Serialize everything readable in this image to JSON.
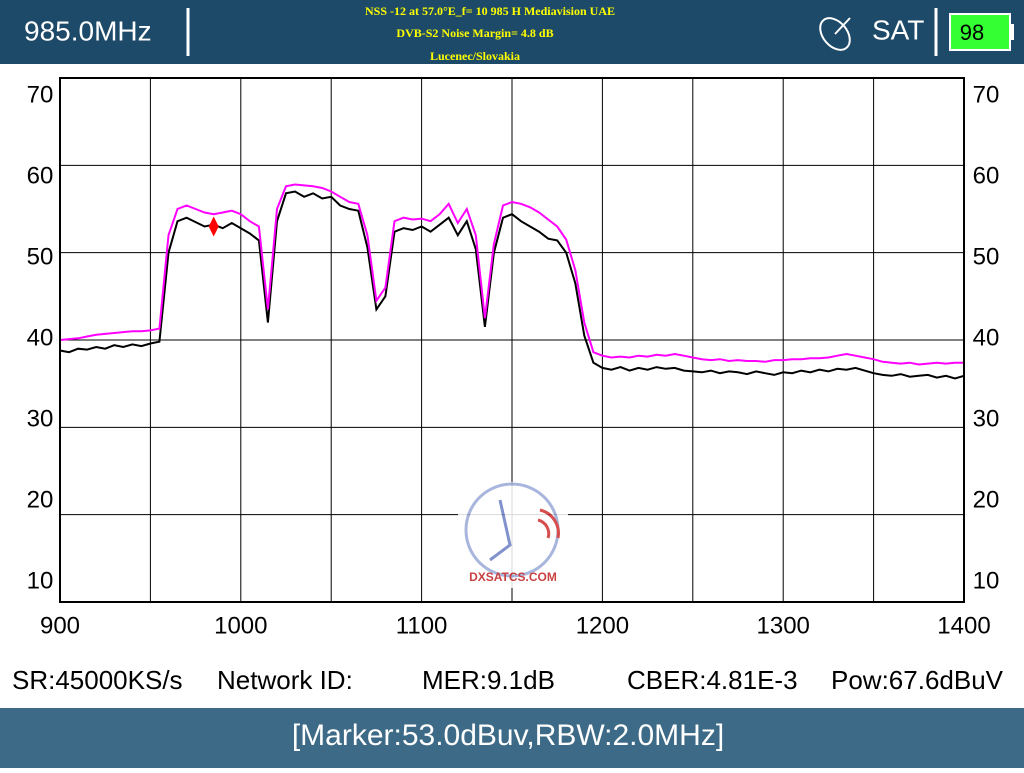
{
  "header": {
    "frequency": "985.0MHz",
    "info": [
      "NSS -12 at 57.0°E_f= 10 985 H Mediavision UAE",
      "DVB-S2 Noise Margin= 4.8 dB",
      "Lucenec/Slovakia"
    ],
    "mode": "SAT",
    "battery": "98"
  },
  "chart_data": {
    "type": "line",
    "x": [
      900,
      905,
      910,
      915,
      920,
      925,
      930,
      935,
      940,
      945,
      950,
      955,
      960,
      965,
      970,
      975,
      980,
      985,
      990,
      995,
      1000,
      1005,
      1010,
      1015,
      1020,
      1025,
      1030,
      1035,
      1040,
      1045,
      1050,
      1055,
      1060,
      1065,
      1070,
      1075,
      1080,
      1085,
      1090,
      1095,
      1100,
      1105,
      1110,
      1115,
      1120,
      1125,
      1130,
      1135,
      1140,
      1145,
      1150,
      1155,
      1160,
      1165,
      1170,
      1175,
      1180,
      1185,
      1190,
      1195,
      1200,
      1205,
      1210,
      1215,
      1220,
      1225,
      1230,
      1235,
      1240,
      1245,
      1250,
      1255,
      1260,
      1265,
      1270,
      1275,
      1280,
      1285,
      1290,
      1295,
      1300,
      1305,
      1310,
      1315,
      1320,
      1325,
      1330,
      1335,
      1340,
      1345,
      1350,
      1355,
      1360,
      1365,
      1370,
      1375,
      1380,
      1385,
      1390,
      1395,
      1400
    ],
    "series": [
      {
        "color": "#ff00ff",
        "values": [
          40.0,
          40.1,
          40.2,
          40.4,
          40.6,
          40.7,
          40.8,
          40.9,
          41.0,
          41.0,
          41.1,
          41.3,
          52.0,
          55.0,
          55.4,
          55.0,
          54.6,
          54.4,
          54.6,
          54.8,
          54.4,
          53.6,
          53.0,
          43.5,
          55.0,
          57.6,
          57.8,
          57.7,
          57.6,
          57.4,
          57.0,
          56.4,
          55.8,
          55.6,
          52.0,
          44.5,
          46.0,
          53.6,
          54.0,
          53.8,
          53.9,
          53.6,
          54.4,
          55.6,
          53.4,
          55.0,
          52.0,
          42.5,
          51.0,
          55.4,
          55.8,
          55.6,
          55.2,
          54.6,
          53.8,
          53.0,
          51.5,
          48.0,
          42.0,
          38.6,
          38.2,
          38.0,
          38.1,
          38.0,
          38.2,
          38.1,
          38.3,
          38.2,
          38.4,
          38.2,
          38.0,
          37.8,
          37.7,
          37.8,
          37.6,
          37.7,
          37.6,
          37.6,
          37.5,
          37.7,
          37.7,
          37.8,
          37.8,
          37.9,
          37.9,
          38.0,
          38.2,
          38.4,
          38.2,
          38.0,
          37.8,
          37.5,
          37.4,
          37.3,
          37.4,
          37.2,
          37.3,
          37.4,
          37.3,
          37.4,
          37.4
        ]
      },
      {
        "color": "#000000",
        "values": [
          38.8,
          38.6,
          39.0,
          38.9,
          39.2,
          39.0,
          39.4,
          39.2,
          39.5,
          39.3,
          39.6,
          39.8,
          50.0,
          53.6,
          54.0,
          53.5,
          53.0,
          53.2,
          52.8,
          53.4,
          52.8,
          52.2,
          51.4,
          42.0,
          53.6,
          56.8,
          57.0,
          56.4,
          56.8,
          56.2,
          56.4,
          55.4,
          55.0,
          54.8,
          50.6,
          43.5,
          45.0,
          52.4,
          52.8,
          52.6,
          53.0,
          52.4,
          53.2,
          54.0,
          52.0,
          53.6,
          50.4,
          41.5,
          50.0,
          54.0,
          54.4,
          53.6,
          53.0,
          52.4,
          51.6,
          51.4,
          50.0,
          46.5,
          40.5,
          37.4,
          36.8,
          36.6,
          36.9,
          36.5,
          36.8,
          36.6,
          36.9,
          36.7,
          36.8,
          36.5,
          36.4,
          36.3,
          36.5,
          36.2,
          36.4,
          36.3,
          36.1,
          36.4,
          36.2,
          36.0,
          36.3,
          36.2,
          36.5,
          36.3,
          36.6,
          36.4,
          36.7,
          36.6,
          36.8,
          36.5,
          36.2,
          36.0,
          35.9,
          36.1,
          35.8,
          35.9,
          36.0,
          35.7,
          35.9,
          35.6,
          35.9
        ]
      }
    ],
    "marker": {
      "x": 985,
      "y": 53.0,
      "color": "#ff0000"
    },
    "xlim": [
      900,
      1400
    ],
    "xticks": [
      900,
      1000,
      1100,
      1200,
      1300,
      1400
    ],
    "xgrid": [
      950,
      1050,
      1150,
      1250,
      1350
    ],
    "ylim": [
      10,
      70
    ],
    "yticks": [
      10,
      20,
      30,
      40,
      50,
      60,
      70
    ],
    "grid": true
  },
  "watermark": "DXSATCS.COM",
  "stats": [
    "SR:45000KS/s",
    "Network ID:",
    "MER:9.1dB",
    "CBER:4.81E-3",
    "Pow:67.6dBuV"
  ],
  "footer": "[Marker:53.0dBuv,RBW:2.0MHz]"
}
